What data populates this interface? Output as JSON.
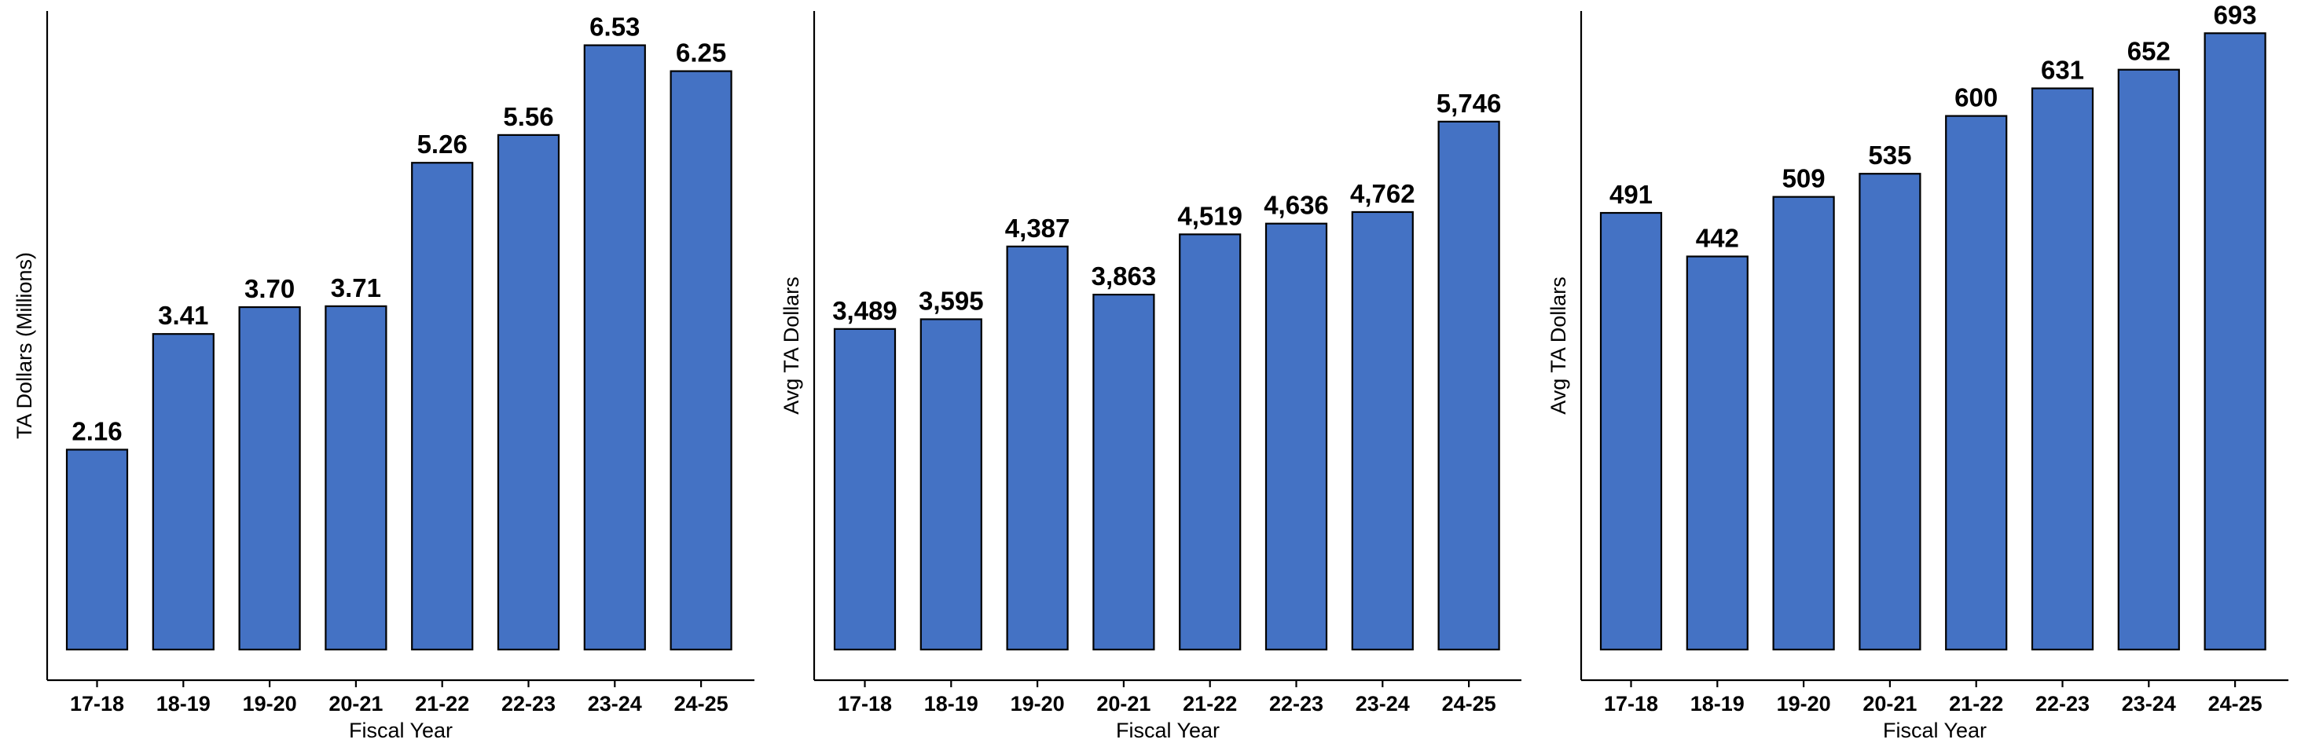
{
  "chart_data": [
    {
      "type": "bar",
      "categories": [
        "17-18",
        "18-19",
        "19-20",
        "20-21",
        "21-22",
        "22-23",
        "23-24",
        "24-25"
      ],
      "values": [
        2.16,
        3.41,
        3.7,
        3.71,
        5.26,
        5.56,
        6.53,
        6.25
      ],
      "data_labels": [
        "2.16",
        "3.41",
        "3.70",
        "3.71",
        "5.26",
        "5.56",
        "6.53",
        "6.25"
      ],
      "xlabel": "Fiscal Year",
      "ylabel": "TA Dollars (Millions)",
      "ylim": [
        0,
        6.9
      ],
      "bar_color": "#4472C4",
      "grid": false
    },
    {
      "type": "bar",
      "categories": [
        "17-18",
        "18-19",
        "19-20",
        "20-21",
        "21-22",
        "22-23",
        "23-24",
        "24-25"
      ],
      "values": [
        3489,
        3595,
        4387,
        3863,
        4519,
        4636,
        4762,
        5746
      ],
      "data_labels": [
        "3,489",
        "3,595",
        "4,387",
        "3,863",
        "4,519",
        "4,636",
        "4,762",
        "5,746"
      ],
      "xlabel": "Fiscal Year",
      "ylabel": "Avg TA Dollars",
      "ylim": [
        0,
        6950
      ],
      "bar_color": "#4472C4",
      "grid": false
    },
    {
      "type": "bar",
      "categories": [
        "17-18",
        "18-19",
        "19-20",
        "20-21",
        "21-22",
        "22-23",
        "23-24",
        "24-25"
      ],
      "values": [
        491,
        442,
        509,
        535,
        600,
        631,
        652,
        693
      ],
      "data_labels": [
        "491",
        "442",
        "509",
        "535",
        "600",
        "631",
        "652",
        "693"
      ],
      "xlabel": "Fiscal Year",
      "ylabel": "Avg TA Dollars",
      "ylim": [
        0,
        718
      ],
      "bar_color": "#4472C4",
      "grid": false
    }
  ]
}
